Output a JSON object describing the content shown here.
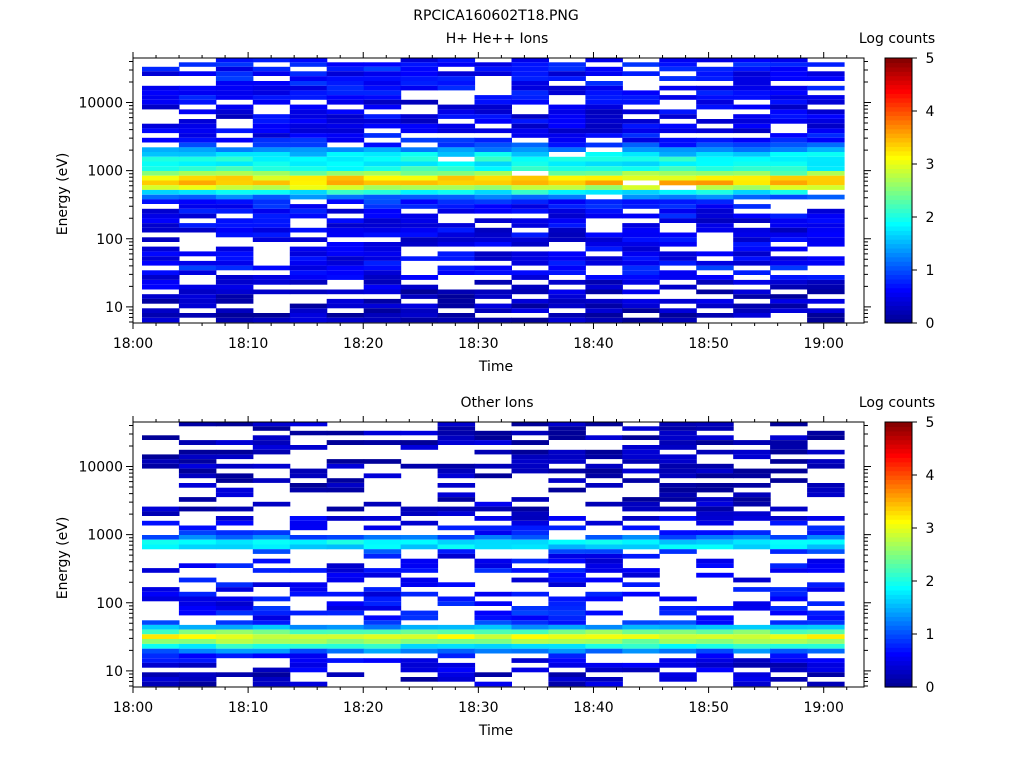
{
  "figure_title": "RPCICA160602T18.PNG",
  "colormap": [
    "#00008f",
    "#0000ff",
    "#0080ff",
    "#00ffff",
    "#80ff80",
    "#ffff00",
    "#ff8000",
    "#ff0000",
    "#800000"
  ],
  "chart_data": [
    {
      "type": "heatmap",
      "title": "H+ He++ Ions",
      "xlabel": "Time",
      "ylabel": "Energy (eV)",
      "x_ticks": [
        "18:00",
        "18:10",
        "18:20",
        "18:30",
        "18:40",
        "18:50",
        "19:00"
      ],
      "x_range_minutes": [
        0,
        63.5
      ],
      "y_scale": "log",
      "y_range": [
        5.8,
        45000
      ],
      "y_ticks": [
        "10",
        "100",
        "1000",
        "10000"
      ],
      "colorbar": {
        "label": "Log counts",
        "range": [
          0,
          5
        ],
        "ticks": [
          "0",
          "1",
          "2",
          "3",
          "4",
          "5"
        ]
      },
      "columns": 19,
      "bins": [
        {
          "energy": 42000,
          "level": 0.6
        },
        {
          "energy": 36000,
          "level": 0.7
        },
        {
          "energy": 31000,
          "level": 0.7
        },
        {
          "energy": 26500,
          "level": 0.6
        },
        {
          "energy": 22500,
          "level": 0.7
        },
        {
          "energy": 19000,
          "level": 0.7
        },
        {
          "energy": 16300,
          "level": 0.6
        },
        {
          "energy": 13900,
          "level": 0.6
        },
        {
          "energy": 11900,
          "level": 0.6
        },
        {
          "energy": 10100,
          "level": 0.5
        },
        {
          "energy": 8600,
          "level": 0.5
        },
        {
          "energy": 7300,
          "level": 0.5
        },
        {
          "energy": 6200,
          "level": 0.5
        },
        {
          "energy": 5300,
          "level": 0.5
        },
        {
          "energy": 4500,
          "level": 0.5
        },
        {
          "energy": 3850,
          "level": 0.5
        },
        {
          "energy": 3280,
          "level": 0.6
        },
        {
          "energy": 2800,
          "level": 0.7
        },
        {
          "energy": 2380,
          "level": 0.9
        },
        {
          "energy": 2030,
          "level": 1.3
        },
        {
          "energy": 1730,
          "level": 1.7
        },
        {
          "energy": 1470,
          "level": 1.9
        },
        {
          "energy": 1260,
          "level": 1.8
        },
        {
          "energy": 1070,
          "level": 2.0
        },
        {
          "energy": 910,
          "level": 2.5
        },
        {
          "energy": 780,
          "level": 3.2
        },
        {
          "energy": 660,
          "level": 3.4
        },
        {
          "energy": 565,
          "level": 2.8
        },
        {
          "energy": 480,
          "level": 1.9
        },
        {
          "energy": 410,
          "level": 1.2
        },
        {
          "energy": 350,
          "level": 0.8
        },
        {
          "energy": 298,
          "level": 0.7
        },
        {
          "energy": 254,
          "level": 0.6
        },
        {
          "energy": 216,
          "level": 0.6
        },
        {
          "energy": 184,
          "level": 0.5
        },
        {
          "energy": 157,
          "level": 0.5
        },
        {
          "energy": 134,
          "level": 0.5
        },
        {
          "energy": 114,
          "level": 0.5
        },
        {
          "energy": 97,
          "level": 0.5
        },
        {
          "energy": 83,
          "level": 0.5
        },
        {
          "energy": 71,
          "level": 0.5
        },
        {
          "energy": 60,
          "level": 0.5
        },
        {
          "energy": 51,
          "level": 0.5
        },
        {
          "energy": 44,
          "level": 0.6
        },
        {
          "energy": 37,
          "level": 0.7
        },
        {
          "energy": 32,
          "level": 0.6
        },
        {
          "energy": 27,
          "level": 0.5
        },
        {
          "energy": 23,
          "level": 0.4
        },
        {
          "energy": 19.5,
          "level": 0.4
        },
        {
          "energy": 16.6,
          "level": 0.3
        },
        {
          "energy": 14.2,
          "level": 0.3
        },
        {
          "energy": 12.1,
          "level": 0.3
        },
        {
          "energy": 10.3,
          "level": 0.3
        },
        {
          "energy": 8.8,
          "level": 0.3
        },
        {
          "energy": 7.5,
          "level": 0.2
        },
        {
          "energy": 6.4,
          "level": 0.2
        }
      ]
    },
    {
      "type": "heatmap",
      "title": "Other Ions",
      "xlabel": "Time",
      "ylabel": "Energy (eV)",
      "x_ticks": [
        "18:00",
        "18:10",
        "18:20",
        "18:30",
        "18:40",
        "18:50",
        "19:00"
      ],
      "x_range_minutes": [
        0,
        63.5
      ],
      "y_scale": "log",
      "y_range": [
        5.8,
        45000
      ],
      "y_ticks": [
        "10",
        "100",
        "1000",
        "10000"
      ],
      "colorbar": {
        "label": "Log counts",
        "range": [
          0,
          5
        ],
        "ticks": [
          "0",
          "1",
          "2",
          "3",
          "4",
          "5"
        ]
      },
      "columns": 19,
      "bins": [
        {
          "energy": 42000,
          "level": 0.2
        },
        {
          "energy": 36000,
          "level": 0.2
        },
        {
          "energy": 31000,
          "level": 0.2
        },
        {
          "energy": 26500,
          "level": 0.2
        },
        {
          "energy": 22500,
          "level": 0.2
        },
        {
          "energy": 19000,
          "level": 0.2
        },
        {
          "energy": 16300,
          "level": 0.2
        },
        {
          "energy": 13900,
          "level": 0.2
        },
        {
          "energy": 11900,
          "level": 0.2
        },
        {
          "energy": 10100,
          "level": 0.2
        },
        {
          "energy": 8600,
          "level": 0.2
        },
        {
          "energy": 7300,
          "level": 0.2
        },
        {
          "energy": 6200,
          "level": 0.2
        },
        {
          "energy": 5300,
          "level": 0.2
        },
        {
          "energy": 4500,
          "level": 0.2
        },
        {
          "energy": 3850,
          "level": 0.2
        },
        {
          "energy": 3280,
          "level": 0.2
        },
        {
          "energy": 2800,
          "level": 0.3
        },
        {
          "energy": 2380,
          "level": 0.3
        },
        {
          "energy": 2030,
          "level": 0.4
        },
        {
          "energy": 1730,
          "level": 0.5
        },
        {
          "energy": 1470,
          "level": 0.5
        },
        {
          "energy": 1260,
          "level": 0.6
        },
        {
          "energy": 1070,
          "level": 0.7
        },
        {
          "energy": 910,
          "level": 1.1
        },
        {
          "energy": 780,
          "level": 1.8
        },
        {
          "energy": 660,
          "level": 1.7
        },
        {
          "energy": 565,
          "level": 0.9
        },
        {
          "energy": 480,
          "level": 0.6
        },
        {
          "energy": 410,
          "level": 0.6
        },
        {
          "energy": 350,
          "level": 0.6
        },
        {
          "energy": 298,
          "level": 0.6
        },
        {
          "energy": 254,
          "level": 0.6
        },
        {
          "energy": 216,
          "level": 0.6
        },
        {
          "energy": 184,
          "level": 0.6
        },
        {
          "energy": 157,
          "level": 0.6
        },
        {
          "energy": 134,
          "level": 0.6
        },
        {
          "energy": 114,
          "level": 0.6
        },
        {
          "energy": 97,
          "level": 0.6
        },
        {
          "energy": 83,
          "level": 0.7
        },
        {
          "energy": 71,
          "level": 0.7
        },
        {
          "energy": 60,
          "level": 0.7
        },
        {
          "energy": 51,
          "level": 0.8
        },
        {
          "energy": 44,
          "level": 1.4
        },
        {
          "energy": 37,
          "level": 2.4
        },
        {
          "energy": 32,
          "level": 3.0
        },
        {
          "energy": 27,
          "level": 2.6
        },
        {
          "energy": 23,
          "level": 1.9
        },
        {
          "energy": 19.5,
          "level": 1.2
        },
        {
          "energy": 16.6,
          "level": 0.7
        },
        {
          "energy": 14.2,
          "level": 0.5
        },
        {
          "energy": 12.1,
          "level": 0.4
        },
        {
          "energy": 10.3,
          "level": 0.4
        },
        {
          "energy": 8.8,
          "level": 0.3
        },
        {
          "energy": 7.5,
          "level": 0.3
        },
        {
          "energy": 6.4,
          "level": 0.3
        }
      ]
    }
  ]
}
